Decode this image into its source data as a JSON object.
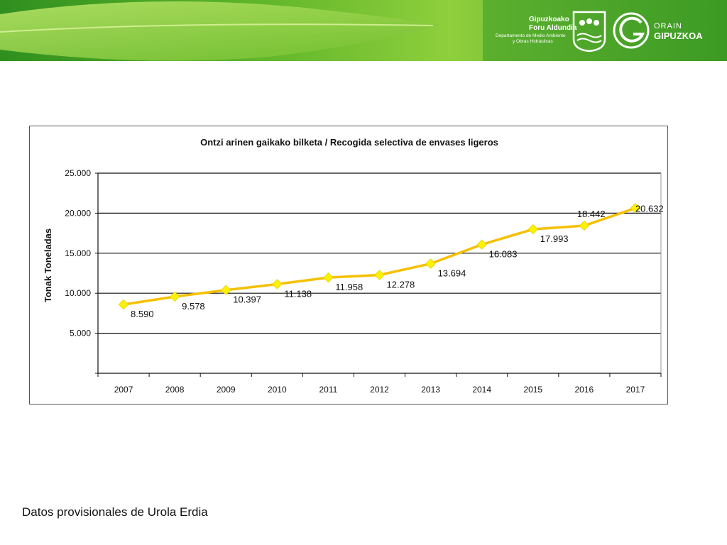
{
  "header": {
    "org_line1": "Gipuzkoako",
    "org_line2": "Foru Aldundia",
    "dept_line1": "Departamento de Medio Ambiente",
    "dept_line2": "y Obras Hidráulicas",
    "brand_small": "ORAIN",
    "brand_large": "GIPUZKOA"
  },
  "chart_data": {
    "type": "line",
    "title": "Ontzi arinen gaikako bilketa / Recogida selectiva de envases ligeros",
    "xlabel": "",
    "ylabel": "Tonak Toneladas",
    "categories": [
      "2007",
      "2008",
      "2009",
      "2010",
      "2011",
      "2012",
      "2013",
      "2014",
      "2015",
      "2016",
      "2017"
    ],
    "series": [
      {
        "values": [
          8590,
          9578,
          10397,
          11138,
          11958,
          12278,
          13694,
          16083,
          17993,
          18442,
          20632
        ]
      }
    ],
    "data_labels": [
      "8.590",
      "9.578",
      "10.397",
      "11.138",
      "11.958",
      "12.278",
      "13.694",
      "16.083",
      "17.993",
      "18.442",
      "20.632"
    ],
    "ylim": [
      0,
      25000
    ],
    "yticks": [
      5000,
      10000,
      15000,
      20000,
      25000
    ],
    "ytick_labels": [
      "5.000",
      "10.000",
      "15.000",
      "20.000",
      "25.000"
    ],
    "grid": true,
    "legend": "none",
    "line_color": "#F5C000",
    "marker_color": "#FFF200"
  },
  "footnote": "Datos provisionales de Urola Erdia"
}
